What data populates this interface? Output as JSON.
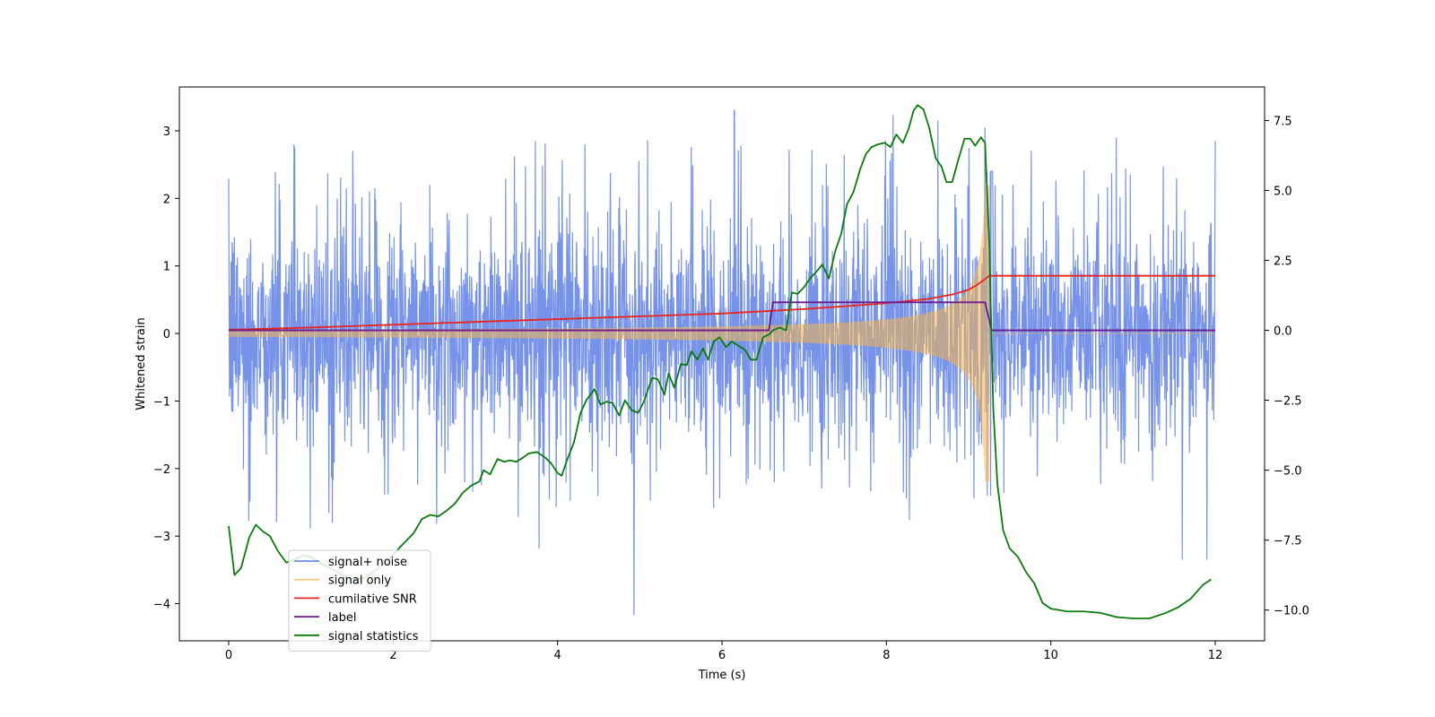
{
  "chart_data": {
    "type": "line",
    "xlabel": "Time (s)",
    "ylabel": "Whitened strain",
    "xlim": [
      -0.6,
      12.6
    ],
    "ylim_left": [
      -4.55,
      3.65
    ],
    "ylim_right": [
      -11.1,
      8.7
    ],
    "x_ticks": [
      0,
      2,
      4,
      6,
      8,
      10,
      12
    ],
    "y_ticks_left": [
      -4,
      -3,
      -2,
      -1,
      0,
      1,
      2,
      3
    ],
    "y_ticks_right": [
      -10.0,
      -7.5,
      -5.0,
      -2.5,
      0.0,
      2.5,
      5.0,
      7.5
    ],
    "grid": false,
    "legend_position": "lower left",
    "series": [
      {
        "name": "signal+ noise",
        "axis": "left",
        "color": "#6f8de8",
        "kind": "noise",
        "x_range": [
          0,
          12
        ],
        "envelope": {
          "typical_amplitude": 1.1,
          "peak_max": 3.3,
          "peak_min": -4.2,
          "notable_peaks": [
            {
              "x": 6.15,
              "y": 3.3
            },
            {
              "x": 9.2,
              "y": 3.05
            },
            {
              "x": 12.0,
              "y": 2.85
            },
            {
              "x": 4.93,
              "y": -4.17
            },
            {
              "x": 11.6,
              "y": -3.35
            },
            {
              "x": 11.9,
              "y": -3.35
            }
          ]
        }
      },
      {
        "name": "signal only",
        "axis": "left",
        "color": "#f5b54d",
        "kind": "chirp",
        "x_range": [
          0,
          12
        ],
        "chirp": {
          "merger_time": 9.25,
          "amplitude_start": 0.05,
          "amplitude_at_merger": 2.2,
          "post_merger": 0.0
        }
      },
      {
        "name": "cumilative SNR",
        "axis": "right",
        "color": "#e8261e",
        "kind": "line",
        "x": [
          0,
          1,
          2,
          3,
          4,
          5,
          6,
          6.5,
          7,
          7.5,
          8,
          8.5,
          8.8,
          9.0,
          9.1,
          9.2,
          9.25,
          10,
          11,
          12
        ],
        "y": [
          0.02,
          0.1,
          0.2,
          0.3,
          0.4,
          0.5,
          0.6,
          0.68,
          0.76,
          0.86,
          0.97,
          1.12,
          1.28,
          1.45,
          1.62,
          1.83,
          1.95,
          1.95,
          1.95,
          1.95
        ]
      },
      {
        "name": "label",
        "axis": "right",
        "color": "#6a1a8a",
        "kind": "step",
        "x": [
          0,
          6.57,
          6.62,
          9.2,
          9.28,
          12
        ],
        "y": [
          0.0,
          0.0,
          1.0,
          1.0,
          0.0,
          0.0
        ]
      },
      {
        "name": "signal statistics",
        "axis": "right",
        "color": "#0a7a0a",
        "kind": "line",
        "x": [
          0.0,
          0.07,
          0.15,
          0.25,
          0.33,
          0.42,
          0.5,
          0.6,
          0.7,
          0.8,
          0.9,
          1.0,
          1.1,
          1.2,
          1.35,
          1.5,
          1.65,
          1.8,
          1.95,
          2.1,
          2.25,
          2.35,
          2.45,
          2.55,
          2.65,
          2.75,
          2.85,
          2.95,
          3.05,
          3.1,
          3.18,
          3.27,
          3.35,
          3.42,
          3.5,
          3.58,
          3.65,
          3.75,
          3.85,
          3.92,
          4.0,
          4.05,
          4.12,
          4.2,
          4.28,
          4.35,
          4.45,
          4.52,
          4.6,
          4.67,
          4.75,
          4.82,
          4.9,
          4.98,
          5.05,
          5.15,
          5.22,
          5.3,
          5.35,
          5.42,
          5.5,
          5.57,
          5.63,
          5.7,
          5.77,
          5.83,
          5.9,
          5.97,
          6.05,
          6.12,
          6.2,
          6.28,
          6.35,
          6.42,
          6.5,
          6.57,
          6.62,
          6.7,
          6.78,
          6.85,
          6.92,
          7.0,
          7.07,
          7.15,
          7.22,
          7.3,
          7.38,
          7.45,
          7.52,
          7.6,
          7.68,
          7.75,
          7.82,
          7.9,
          7.98,
          8.05,
          8.12,
          8.2,
          8.27,
          8.33,
          8.38,
          8.45,
          8.52,
          8.6,
          8.67,
          8.73,
          8.8,
          8.87,
          8.95,
          9.02,
          9.08,
          9.15,
          9.2,
          9.25,
          9.3,
          9.35,
          9.42,
          9.5,
          9.6,
          9.7,
          9.8,
          9.9,
          10.0,
          10.2,
          10.4,
          10.6,
          10.8,
          11.0,
          11.2,
          11.4,
          11.55,
          11.7,
          11.85,
          11.95
        ],
        "y": [
          -7.0,
          -8.75,
          -8.5,
          -7.4,
          -6.95,
          -7.2,
          -7.35,
          -7.9,
          -8.3,
          -8.2,
          -8.05,
          -8.1,
          -8.3,
          -8.45,
          -8.7,
          -8.9,
          -8.85,
          -8.55,
          -8.2,
          -7.7,
          -7.25,
          -6.75,
          -6.6,
          -6.65,
          -6.45,
          -6.2,
          -5.8,
          -5.55,
          -5.4,
          -5.0,
          -5.15,
          -4.6,
          -4.7,
          -4.65,
          -4.7,
          -4.55,
          -4.4,
          -4.35,
          -4.55,
          -4.75,
          -5.1,
          -5.2,
          -4.6,
          -4.0,
          -2.95,
          -2.5,
          -2.1,
          -2.65,
          -2.55,
          -2.6,
          -3.05,
          -2.5,
          -2.85,
          -2.95,
          -2.55,
          -1.7,
          -1.75,
          -2.3,
          -1.55,
          -2.05,
          -1.2,
          -1.25,
          -0.75,
          -1.05,
          -0.65,
          -1.05,
          -0.4,
          -0.25,
          -0.6,
          -0.4,
          -0.55,
          -0.7,
          -1.05,
          -1.05,
          -0.25,
          -0.15,
          0.0,
          0.1,
          0.0,
          1.35,
          1.3,
          1.55,
          1.85,
          2.1,
          2.35,
          1.85,
          2.85,
          3.45,
          4.5,
          4.95,
          5.75,
          6.3,
          6.55,
          6.65,
          6.7,
          6.55,
          7.0,
          6.7,
          7.2,
          7.85,
          8.05,
          7.9,
          7.25,
          6.15,
          5.85,
          5.3,
          5.3,
          6.05,
          6.85,
          6.85,
          6.6,
          6.9,
          6.7,
          3.2,
          -2.8,
          -5.5,
          -7.15,
          -7.8,
          -8.1,
          -8.65,
          -9.05,
          -9.75,
          -9.95,
          -10.05,
          -10.05,
          -10.1,
          -10.25,
          -10.3,
          -10.3,
          -10.1,
          -9.9,
          -9.6,
          -9.1,
          -8.9
        ]
      }
    ]
  }
}
